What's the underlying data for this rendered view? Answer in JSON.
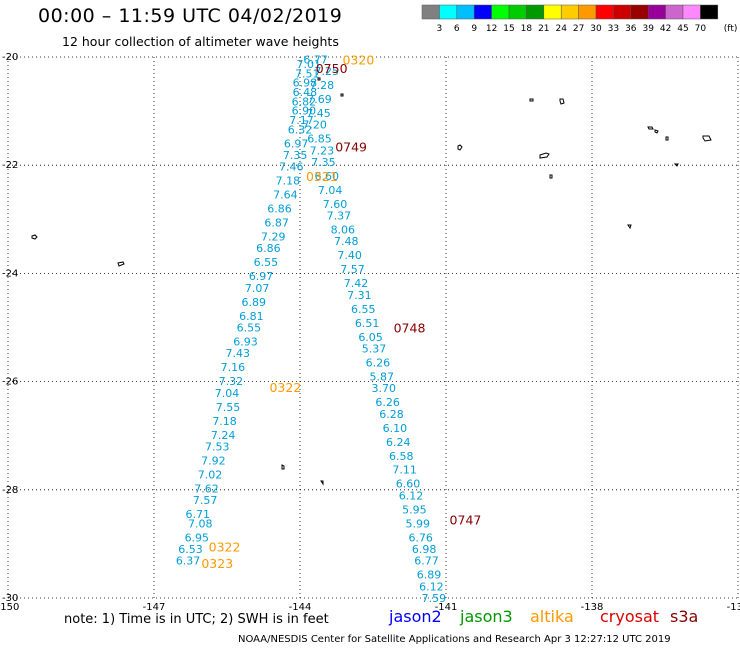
{
  "header": {
    "title": "00:00 – 11:59 UTC 04/02/2019",
    "subtitle": "12 hour collection of altimeter wave heights"
  },
  "footer": {
    "note": "note: 1) Time is in UTC; 2) SWH is in feet",
    "credit": "NOAA/NESDIS Center for Satellite Applications and Research   Apr  3 12:27:12 UTC 2019"
  },
  "satellites": [
    {
      "name": "jason2",
      "color": "#0000ff"
    },
    {
      "name": "jason3",
      "color": "#009900"
    },
    {
      "name": "altika",
      "color": "#ff9900"
    },
    {
      "name": "cryosat",
      "color": "#dd0000"
    },
    {
      "name": "s3a",
      "color": "#880000"
    }
  ],
  "colorbar": {
    "unit": "(ft)",
    "colors": [
      "#808080",
      "#00ffff",
      "#00bfff",
      "#0000ff",
      "#00ff00",
      "#00cc00",
      "#009900",
      "#ffff00",
      "#ffcc00",
      "#ff9900",
      "#ff0000",
      "#cc0000",
      "#990000",
      "#990099",
      "#cc66cc",
      "#ff88ff",
      "#000000"
    ],
    "labels": [
      "3",
      "6",
      "9",
      "12",
      "15",
      "18",
      "21",
      "24",
      "27",
      "30",
      "33",
      "36",
      "39",
      "42",
      "45",
      "70"
    ]
  },
  "chart_data": {
    "type": "scatter",
    "xlim": [
      -150,
      -135
    ],
    "ylim": [
      -30,
      -20
    ],
    "x_ticks": [
      "-150",
      "-147",
      "-144",
      "-141",
      "-138",
      "-135"
    ],
    "y_ticks": [
      "-20",
      "-22",
      "-24",
      "-26",
      "-28",
      "-30"
    ],
    "point_color": "#1ba8d6",
    "series": [
      {
        "name": "altika",
        "color": "#009ed6",
        "points": [
          {
            "lat": -20.05,
            "lon": -143.68,
            "v": "6.77"
          },
          {
            "lat": -20.15,
            "lon": -143.82,
            "v": "7.01"
          },
          {
            "lat": -20.35,
            "lon": -143.85,
            "v": "7.51"
          },
          {
            "lat": -20.55,
            "lon": -143.9,
            "v": "6.98"
          },
          {
            "lat": -20.75,
            "lon": -143.9,
            "v": "6.48"
          },
          {
            "lat": -20.95,
            "lon": -143.92,
            "v": "6.82"
          },
          {
            "lat": -21.15,
            "lon": -143.92,
            "v": "6.90"
          },
          {
            "lat": -21.35,
            "lon": -143.97,
            "v": "7.17"
          },
          {
            "lat": -21.55,
            "lon": -144.0,
            "v": "6.32"
          },
          {
            "lat": -21.85,
            "lon": -144.08,
            "v": "6.97"
          },
          {
            "lat": -22.1,
            "lon": -144.1,
            "v": "7.35"
          },
          {
            "lat": -22.35,
            "lon": -144.18,
            "v": "7.46"
          },
          {
            "lat": -22.65,
            "lon": -144.25,
            "v": "7.18"
          },
          {
            "lat": -22.95,
            "lon": -144.3,
            "v": "7.64"
          },
          {
            "lat": -23.25,
            "lon": -144.42,
            "v": "6.86"
          },
          {
            "lat": -23.55,
            "lon": -144.48,
            "v": "6.87"
          },
          {
            "lat": -23.85,
            "lon": -144.55,
            "v": "7.29"
          },
          {
            "lat": -24.1,
            "lon": -144.65,
            "v": "6.86"
          },
          {
            "lat": -24.4,
            "lon": -144.7,
            "v": "6.55"
          },
          {
            "lat": -24.7,
            "lon": -144.8,
            "v": "6.97"
          },
          {
            "lat": -24.95,
            "lon": -144.88,
            "v": "7.07"
          },
          {
            "lat": -25.25,
            "lon": -144.95,
            "v": "6.89"
          },
          {
            "lat": -25.55,
            "lon": -145.0,
            "v": "6.81"
          },
          {
            "lat": -25.8,
            "lon": -145.05,
            "v": "6.55"
          },
          {
            "lat": -26.1,
            "lon": -145.12,
            "v": "6.93"
          },
          {
            "lat": -26.35,
            "lon": -145.28,
            "v": "7.43"
          },
          {
            "lat": -26.65,
            "lon": -145.38,
            "v": "7.16"
          },
          {
            "lat": -26.95,
            "lon": -145.42,
            "v": "7.32"
          },
          {
            "lat": -27.2,
            "lon": -145.5,
            "v": "7.04"
          },
          {
            "lat": -27.5,
            "lon": -145.48,
            "v": "7.55"
          },
          {
            "lat": -27.8,
            "lon": -145.55,
            "v": "7.18"
          },
          {
            "lat": -28.1,
            "lon": -145.58,
            "v": "7.24"
          },
          {
            "lat": -28.35,
            "lon": -145.7,
            "v": "7.53"
          },
          {
            "lat": -28.65,
            "lon": -145.78,
            "v": "7.92"
          },
          {
            "lat": -28.95,
            "lon": -145.85,
            "v": "7.02"
          },
          {
            "lat": -29.25,
            "lon": -145.92,
            "v": "7.62"
          },
          {
            "lat": -29.5,
            "lon": -145.95,
            "v": "7.57"
          },
          {
            "lat": -29.8,
            "lon": -146.1,
            "v": "6.71"
          },
          {
            "lat": -30.0,
            "lon": -146.05,
            "v": "7.08"
          },
          {
            "lat": -30.3,
            "lon": -146.12,
            "v": "6.95"
          },
          {
            "lat": -30.55,
            "lon": -146.25,
            "v": "6.53"
          },
          {
            "lat": -30.8,
            "lon": -146.3,
            "v": "6.37"
          }
        ]
      },
      {
        "name": "jason3",
        "color": "#009ed6",
        "points": [
          {
            "lat": -20.3,
            "lon": -143.45,
            "v": "7.25"
          },
          {
            "lat": -20.6,
            "lon": -143.55,
            "v": "7.28"
          },
          {
            "lat": -20.9,
            "lon": -143.6,
            "v": "7.69"
          },
          {
            "lat": -21.2,
            "lon": -143.62,
            "v": "7.45"
          },
          {
            "lat": -21.45,
            "lon": -143.7,
            "v": "7.20"
          },
          {
            "lat": -21.75,
            "lon": -143.6,
            "v": "6.85"
          },
          {
            "lat": -22.0,
            "lon": -143.55,
            "v": "7.23"
          },
          {
            "lat": -22.25,
            "lon": -143.52,
            "v": "7.35"
          },
          {
            "lat": -22.55,
            "lon": -143.45,
            "v": "6.60"
          },
          {
            "lat": -22.85,
            "lon": -143.38,
            "v": "7.04"
          },
          {
            "lat": -23.15,
            "lon": -143.28,
            "v": "7.60"
          },
          {
            "lat": -23.4,
            "lon": -143.2,
            "v": "7.37"
          },
          {
            "lat": -23.7,
            "lon": -143.12,
            "v": "8.06"
          },
          {
            "lat": -23.95,
            "lon": -143.05,
            "v": "7.48"
          },
          {
            "lat": -24.25,
            "lon": -142.98,
            "v": "7.40"
          },
          {
            "lat": -24.55,
            "lon": -142.92,
            "v": "7.57"
          },
          {
            "lat": -24.85,
            "lon": -142.85,
            "v": "7.42"
          },
          {
            "lat": -25.1,
            "lon": -142.78,
            "v": "7.31"
          },
          {
            "lat": -25.4,
            "lon": -142.7,
            "v": "6.55"
          },
          {
            "lat": -25.7,
            "lon": -142.62,
            "v": "6.51"
          },
          {
            "lat": -26.0,
            "lon": -142.55,
            "v": "6.05"
          },
          {
            "lat": -26.25,
            "lon": -142.48,
            "v": "5.37"
          },
          {
            "lat": -26.55,
            "lon": -142.4,
            "v": "6.26"
          },
          {
            "lat": -26.85,
            "lon": -142.32,
            "v": "5.87"
          },
          {
            "lat": -27.1,
            "lon": -142.28,
            "v": "3.70"
          },
          {
            "lat": -27.4,
            "lon": -142.2,
            "v": "6.26"
          },
          {
            "lat": -27.65,
            "lon": -142.12,
            "v": "6.28"
          },
          {
            "lat": -27.95,
            "lon": -142.05,
            "v": "6.10"
          },
          {
            "lat": -28.25,
            "lon": -141.98,
            "v": "6.24"
          },
          {
            "lat": -28.55,
            "lon": -141.92,
            "v": "6.58"
          },
          {
            "lat": -28.85,
            "lon": -141.85,
            "v": "7.11"
          },
          {
            "lat": -29.15,
            "lon": -141.78,
            "v": "6.60"
          },
          {
            "lat": -29.4,
            "lon": -141.72,
            "v": "6.12"
          },
          {
            "lat": -29.7,
            "lon": -141.65,
            "v": "5.95"
          },
          {
            "lat": -30.0,
            "lon": -141.58,
            "v": "5.99"
          },
          {
            "lat": -30.3,
            "lon": -141.52,
            "v": "6.76"
          },
          {
            "lat": -30.55,
            "lon": -141.45,
            "v": "6.98"
          },
          {
            "lat": -30.8,
            "lon": -141.4,
            "v": "6.77"
          },
          {
            "lat": -31.1,
            "lon": -141.35,
            "v": "6.89"
          },
          {
            "lat": -31.35,
            "lon": -141.3,
            "v": "6.12"
          },
          {
            "lat": -31.6,
            "lon": -141.25,
            "v": "7.59"
          }
        ]
      }
    ],
    "time_labels": [
      {
        "text": "0320",
        "color": "#ff9900",
        "lat": -20.05,
        "lon": -142.8
      },
      {
        "text": "0750",
        "color": "#880000",
        "lat": -20.2,
        "lon": -143.35
      },
      {
        "text": "0749",
        "color": "#880000",
        "lat": -21.65,
        "lon": -142.95
      },
      {
        "text": "0321",
        "color": "#ff9900",
        "lat": -22.2,
        "lon": -143.55
      },
      {
        "text": "0748",
        "color": "#880000",
        "lat": -25.0,
        "lon": -141.75
      },
      {
        "text": "0322",
        "color": "#ff9900",
        "lat": -26.1,
        "lon": -144.3
      },
      {
        "text": "0747",
        "color": "#880000",
        "lat": -28.55,
        "lon": -140.6
      },
      {
        "text": "0322",
        "color": "#ff9900",
        "lat": -29.05,
        "lon": -145.55
      },
      {
        "text": "0323",
        "color": "#ff9900",
        "lat": -29.35,
        "lon": -145.7
      }
    ]
  }
}
